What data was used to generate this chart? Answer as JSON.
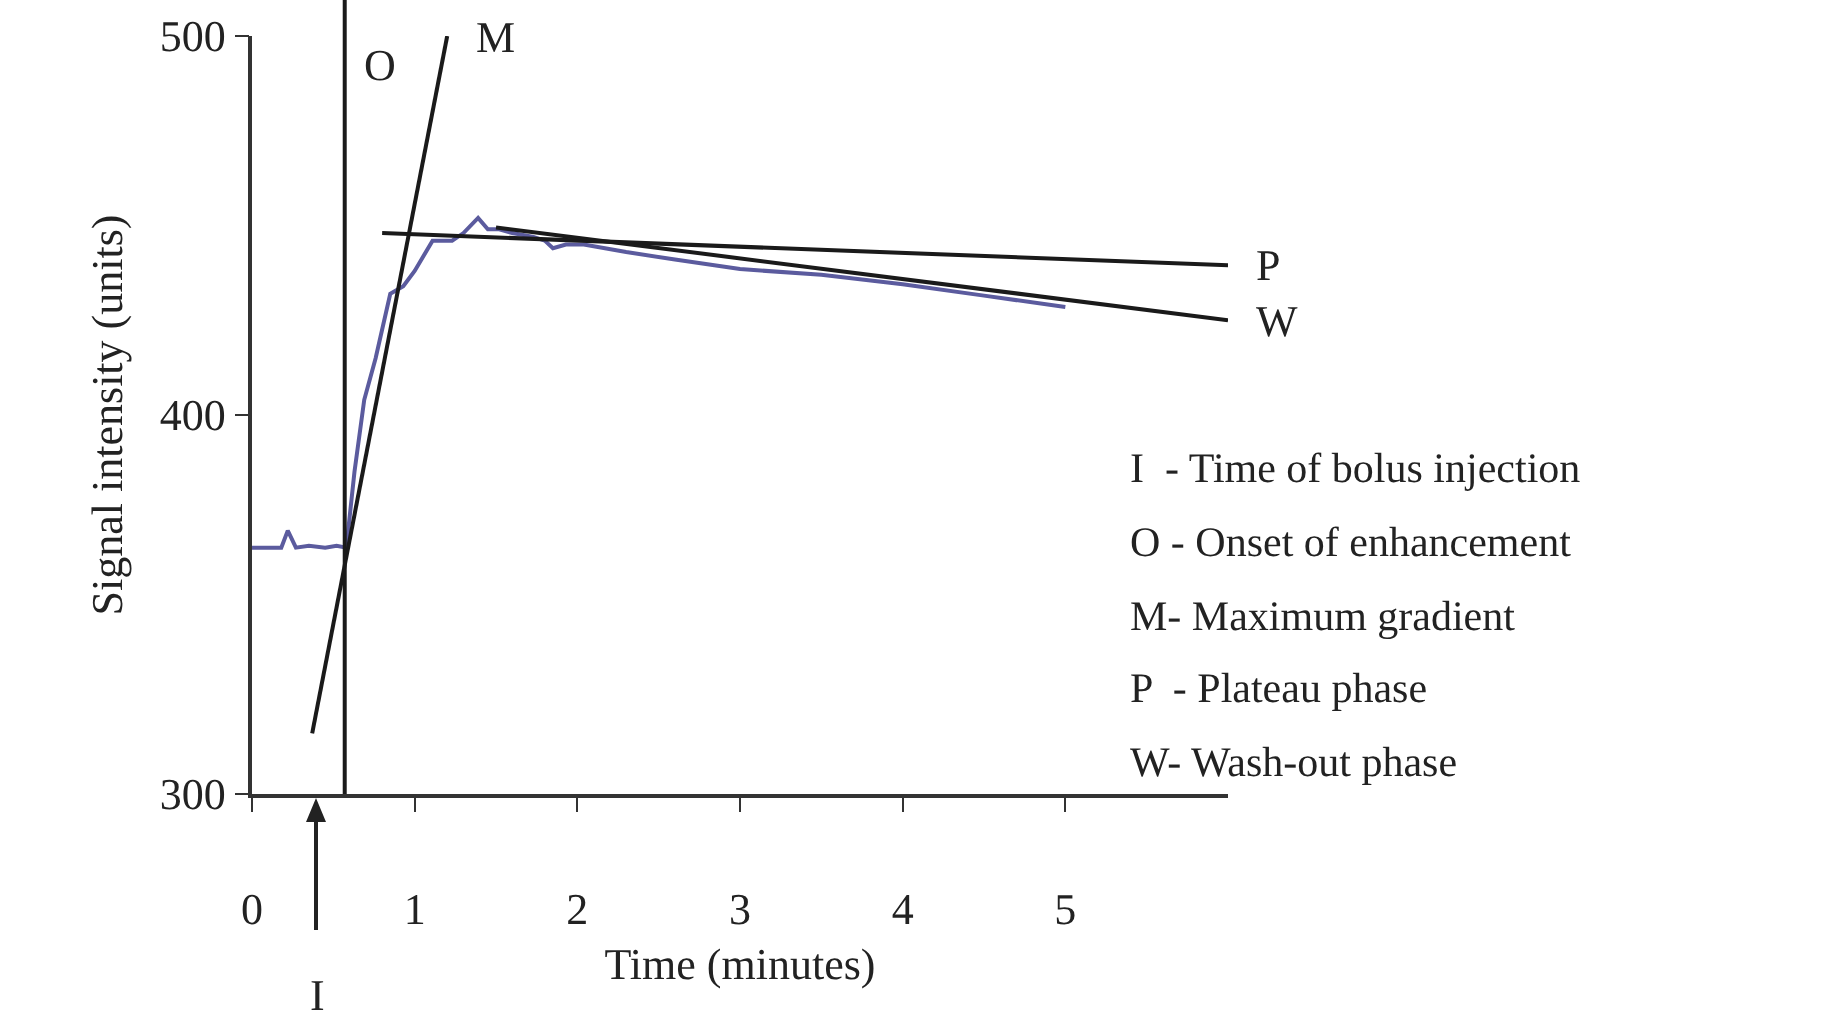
{
  "chart_data": {
    "type": "line",
    "xlabel": "Time (minutes)",
    "ylabel": "Signal intensity (units)",
    "xlim": [
      0,
      6
    ],
    "xticks": [
      0,
      1,
      2,
      3,
      4,
      5
    ],
    "ylim": [
      300,
      500
    ],
    "yticks": [
      300,
      400,
      500
    ],
    "grid": false,
    "legend": false,
    "marker": "none",
    "line_style": "solid",
    "series": [
      {
        "color": "#5b5b9e",
        "x": [
          0,
          0.1,
          0.18,
          0.22,
          0.27,
          0.35,
          0.45,
          0.52,
          0.58,
          0.63,
          0.69,
          0.76,
          0.85,
          0.93,
          1.0,
          1.11,
          1.23,
          1.3,
          1.39,
          1.45,
          1.52,
          1.6,
          1.73,
          1.8,
          1.85,
          1.93,
          2.04,
          2.3,
          2.6,
          3.0,
          3.5,
          4.0,
          4.5,
          5.0
        ],
        "values": [
          365,
          365,
          365,
          369.5,
          365,
          365.5,
          365,
          365.5,
          365,
          385,
          404,
          415,
          432,
          434,
          438,
          446,
          446,
          448,
          452,
          449,
          449,
          448,
          447,
          446,
          444,
          445,
          445,
          443,
          441,
          438.5,
          437,
          434.5,
          431.5,
          428.5
        ]
      },
      {
        "type": "line",
        "name": "M",
        "color": "#1a1a1a",
        "x": [
          0.37,
          1.2
        ],
        "values": [
          316,
          500
        ]
      },
      {
        "type": "line",
        "name": "P",
        "color": "#1a1a1a",
        "x": [
          0.8,
          6.0
        ],
        "values": [
          448,
          439.5
        ]
      },
      {
        "type": "line",
        "name": "W",
        "color": "#1a1a1a",
        "x": [
          1.5,
          6.0
        ],
        "values": [
          449.5,
          425
        ]
      }
    ],
    "ref_lines": [
      {
        "axis": "x",
        "value": 0.57,
        "label": "O",
        "color": "#1a1a1a"
      }
    ],
    "annotations": [
      "I",
      "I  - Time of bolus injection",
      "O - Onset of enhancement",
      "M- Maximum gradient",
      "P  - Plateau phase",
      "W- Wash-out phase"
    ]
  }
}
